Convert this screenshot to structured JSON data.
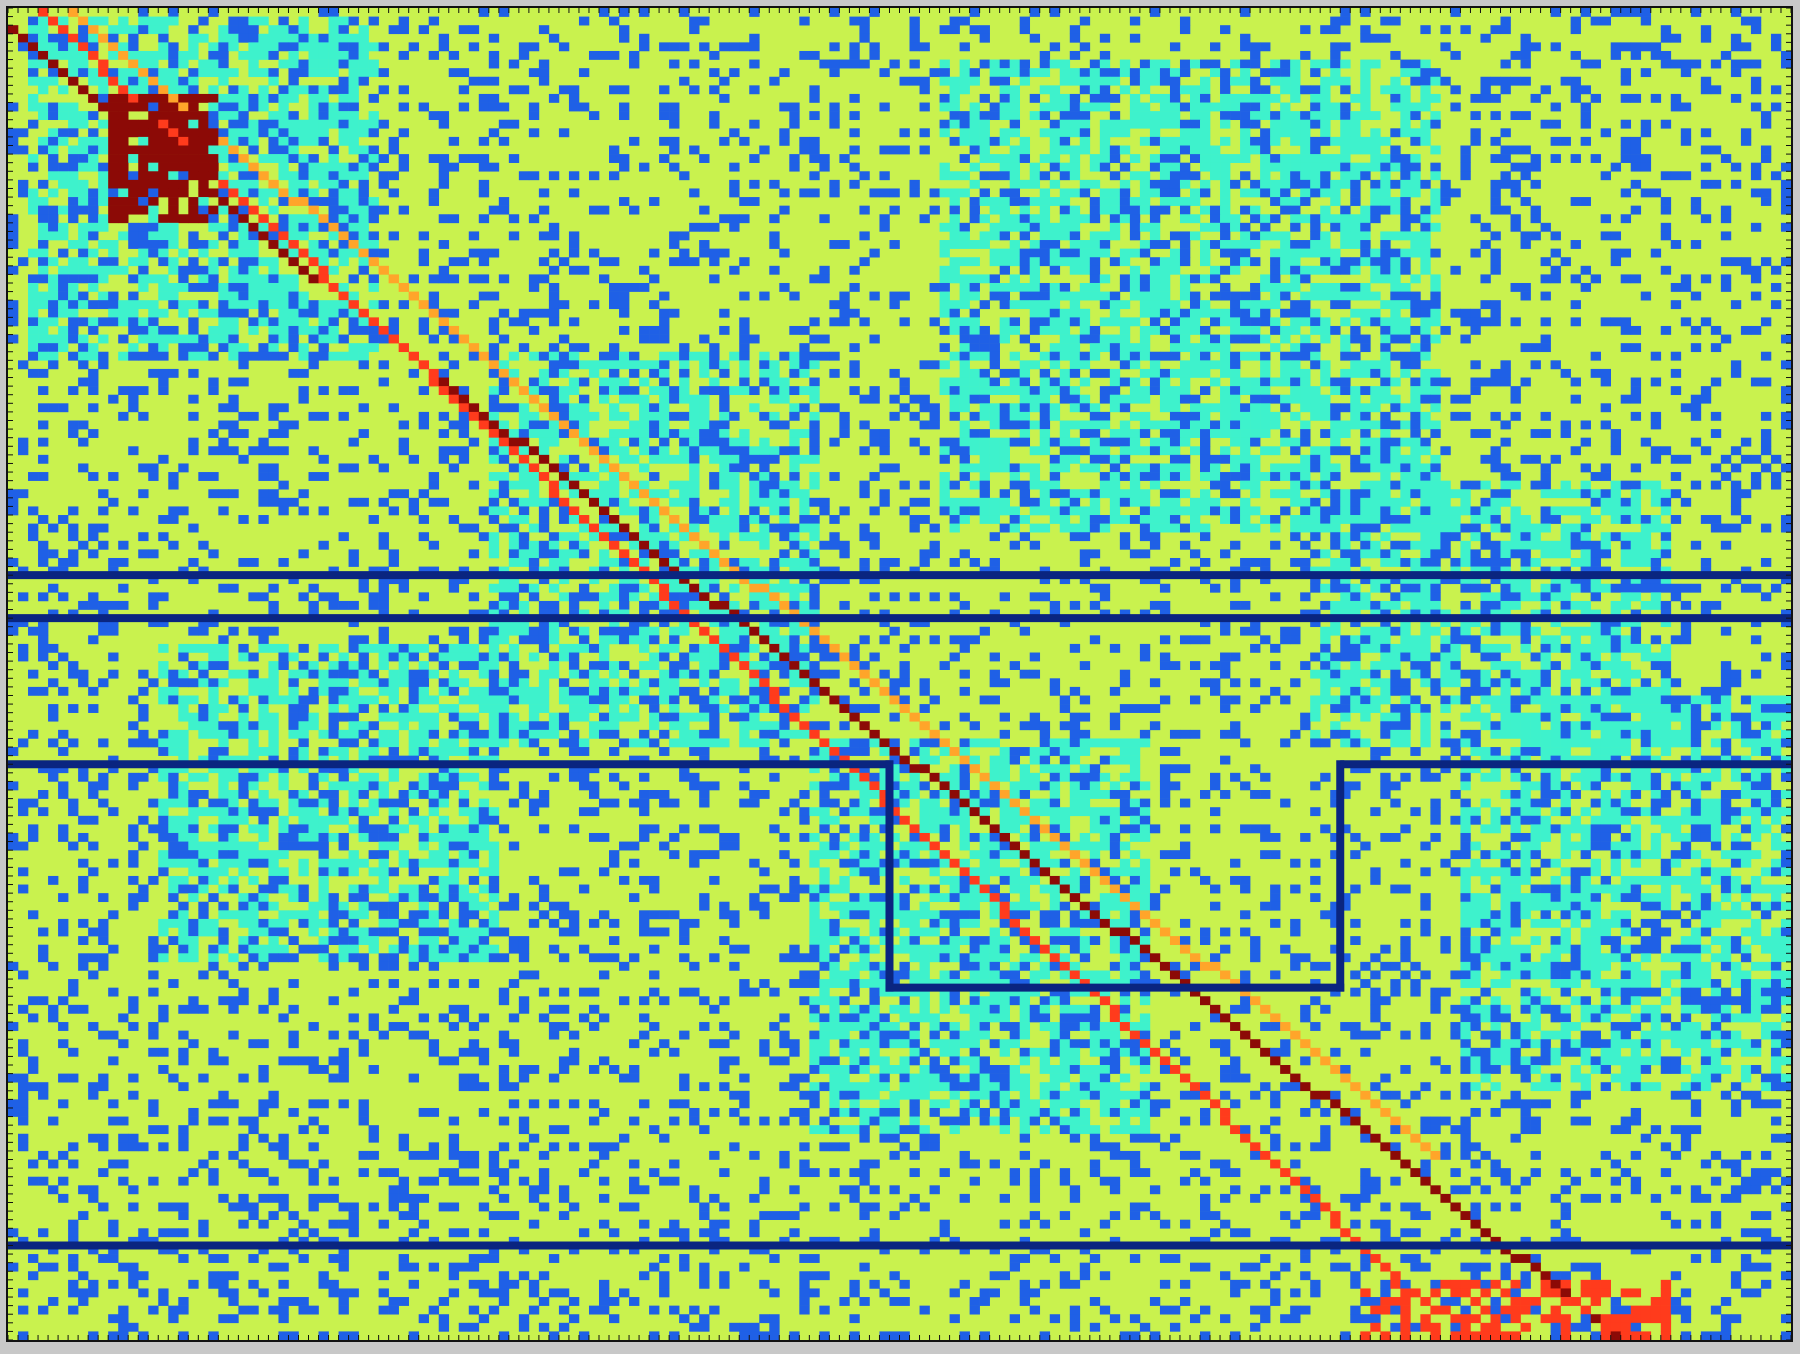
{
  "chart_data": {
    "type": "heatmap",
    "title": "",
    "xlabel": "",
    "ylabel": "",
    "grid": false,
    "legend": "none",
    "matrix_size": {
      "rows": 155,
      "cols": 178
    },
    "value_levels": [
      0,
      1,
      2,
      3,
      4,
      5
    ],
    "colormap": {
      "0": "#1f60e6",
      "1": "#c9f24e",
      "2": "#3ef2cc",
      "3": "#ffa52a",
      "4": "#ff3b1c",
      "5": "#8c0a06"
    },
    "background_value": 1,
    "sparse_fill_fraction": 0.22,
    "dense_regions": [
      {
        "rows": [
          1,
          40
        ],
        "cols": [
          2,
          36
        ],
        "value": 2,
        "density": 0.45
      },
      {
        "rows": [
          6,
          60
        ],
        "cols": [
          93,
          142
        ],
        "value": 2,
        "density": 0.45
      },
      {
        "rows": [
          40,
          85
        ],
        "cols": [
          48,
          80
        ],
        "value": 2,
        "density": 0.4
      },
      {
        "rows": [
          55,
          85
        ],
        "cols": [
          130,
          165
        ],
        "value": 2,
        "density": 0.45
      },
      {
        "rows": [
          74,
          110
        ],
        "cols": [
          15,
          48
        ],
        "value": 2,
        "density": 0.4
      },
      {
        "rows": [
          85,
          130
        ],
        "cols": [
          80,
          113
        ],
        "value": 2,
        "density": 0.45
      },
      {
        "rows": [
          80,
          125
        ],
        "cols": [
          145,
          177
        ],
        "value": 2,
        "density": 0.4
      }
    ],
    "diagonals": [
      {
        "value": 5,
        "from": [
          2,
          0
        ],
        "to": [
          154,
          160
        ]
      },
      {
        "value": 4,
        "from": [
          0,
          3
        ],
        "to": [
          147,
          138
        ]
      },
      {
        "value": 3,
        "from": [
          0,
          6
        ],
        "to": [
          133,
          142
        ]
      }
    ],
    "dense_blocks": [
      {
        "rows": [
          10,
          24
        ],
        "cols": [
          10,
          20
        ],
        "value": 5,
        "density": 0.7
      },
      {
        "rows": [
          148,
          154
        ],
        "cols": [
          135,
          165
        ],
        "value": 4,
        "density": 0.5
      }
    ],
    "outline_color": "#0a2580",
    "partition_rows": [
      66,
      71
    ],
    "hole_boundary": {
      "row_top": 88,
      "row_bottom": 114,
      "col_left": 88,
      "col_right": 133
    },
    "final_partition_row": 144
  }
}
